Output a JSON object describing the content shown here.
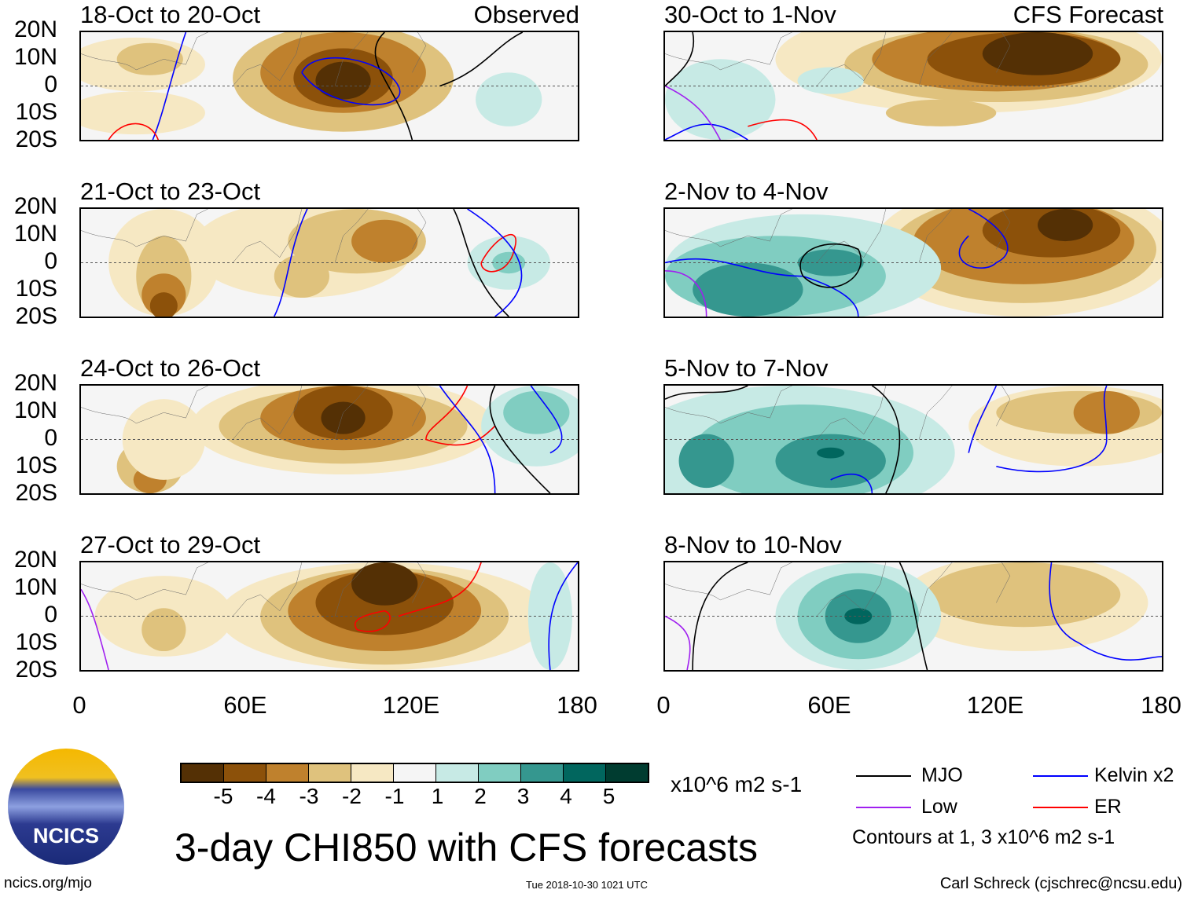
{
  "panels_left": [
    {
      "title": "18-Oct to 20-Oct",
      "tag": "Observed"
    },
    {
      "title": "21-Oct to 23-Oct",
      "tag": ""
    },
    {
      "title": "24-Oct to 26-Oct",
      "tag": ""
    },
    {
      "title": "27-Oct to 29-Oct",
      "tag": ""
    }
  ],
  "panels_right": [
    {
      "title": "30-Oct to 1-Nov",
      "tag": "CFS Forecast"
    },
    {
      "title": "2-Nov to 4-Nov",
      "tag": ""
    },
    {
      "title": "5-Nov to 7-Nov",
      "tag": ""
    },
    {
      "title": "8-Nov to 10-Nov",
      "tag": ""
    }
  ],
  "lat_labels": [
    "20N",
    "10N",
    "0",
    "10S",
    "20S"
  ],
  "lon_labels": [
    "0",
    "60E",
    "120E",
    "180"
  ],
  "colorbar": {
    "colors": [
      "#543005",
      "#8c510a",
      "#bf812d",
      "#dfc27d",
      "#f6e8c3",
      "#f5f5f5",
      "#c7eae5",
      "#80cdc1",
      "#35978f",
      "#01665e",
      "#003c30"
    ],
    "ticks": [
      "-5",
      "-4",
      "-3",
      "-2",
      "-1",
      "1",
      "2",
      "3",
      "4",
      "5"
    ],
    "units": "x10^6 m2 s-1"
  },
  "legend": {
    "mjo": "MJO",
    "low": "Low",
    "kelvin": "Kelvin x2",
    "er": "ER",
    "colors": {
      "mjo": "#000000",
      "low": "#a020f0",
      "kelvin": "#0000ff",
      "er": "#ff0000"
    },
    "note": "Contours at 1, 3 x10^6 m2 s-1"
  },
  "title": "3-day CHI850 with CFS forecasts",
  "logo": {
    "text": "NCICS"
  },
  "footer": {
    "url": "ncics.org/mjo",
    "timestamp": "Tue 2018-10-30 1021 UTC",
    "author": "Carl Schreck (cjschrec@ncsu.edu)"
  }
}
